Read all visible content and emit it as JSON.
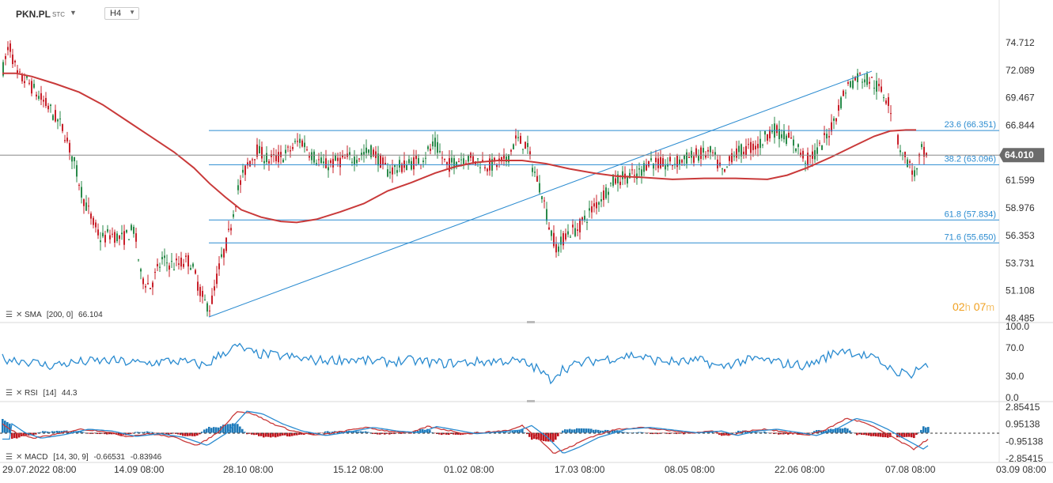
{
  "header": {
    "symbol": "PKN.PL",
    "symbol_suffix": "STC",
    "timeframe": "H4"
  },
  "price_axis": [
    "74.712",
    "72.089",
    "69.467",
    "66.844",
    "61.599",
    "58.976",
    "56.353",
    "53.731",
    "51.108",
    "48.485"
  ],
  "current_price": "64.010",
  "fib_levels": [
    {
      "label": "23.6 (66.351)",
      "value": 66.351
    },
    {
      "label": "38.2 (63.096)",
      "value": 63.096
    },
    {
      "label": "61.8 (57.834)",
      "value": 57.834
    },
    {
      "label": "71.6 (55.650)",
      "value": 55.65
    }
  ],
  "countdown": {
    "hours": "02",
    "h_unit": "h",
    "minutes": "07",
    "m_unit": "m"
  },
  "indicators": {
    "sma": {
      "name": "SMA",
      "params": "[200,  0]",
      "value": "66.104"
    },
    "rsi": {
      "name": "RSI",
      "params": "[14]",
      "value": "44.3",
      "axis": [
        "100.0",
        "70.0",
        "30.0",
        "0.0"
      ]
    },
    "macd": {
      "name": "MACD",
      "params": "[14,  30,  9]",
      "value1": "-0.66531",
      "value2": "-0.83946",
      "axis": [
        "2.85415",
        "0.95138",
        "-0.95138",
        "-2.85415"
      ]
    }
  },
  "time_axis": [
    "29.07.2022  08:00",
    "14.09  08:00",
    "28.10  08:00",
    "15.12  08:00",
    "01.02  08:00",
    "17.03  08:00",
    "08.05  08:00",
    "22.06  08:00",
    "07.08  08:00",
    "03.09  08:00"
  ],
  "colors": {
    "candle_up": "#2a8a4a",
    "candle_down": "#c8202a",
    "sma": "#c93a3a",
    "fib": "#2a8bd0",
    "rsi": "#2a8bd0",
    "macd_line": "#c93a3a",
    "signal_line": "#2a8bd0",
    "price_tag": "#6b6b6b"
  }
}
